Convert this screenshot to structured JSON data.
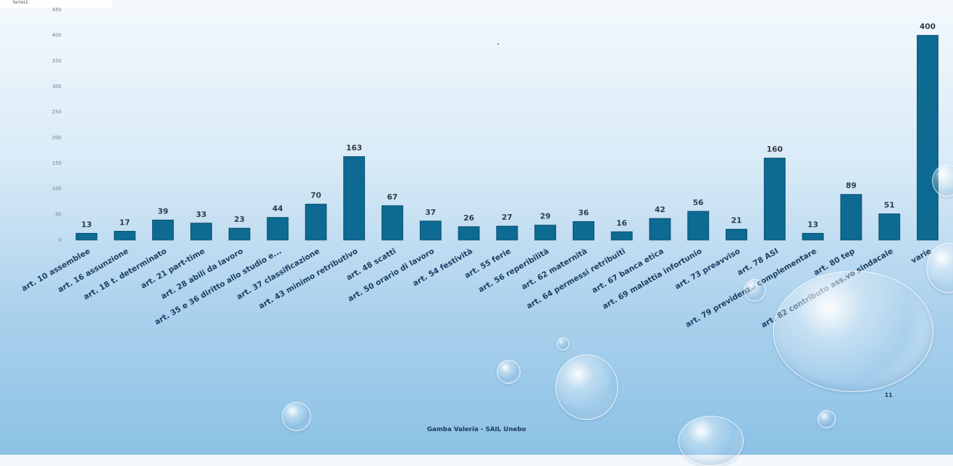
{
  "chart_data": {
    "type": "bar",
    "categories": [
      "art. 10 assemblee",
      "art. 16 assunzione",
      "art. 18 t. determinato",
      "art. 21 part-time",
      "art. 28 abili da lavoro",
      "art. 35 e 36 diritto allo studio e...",
      "art. 37 classificazione",
      "art. 43 minimo retributivo",
      "art. 48 scatti",
      "art. 50 orario di lavoro",
      "art. 54 festività",
      "art. 55 ferie",
      "art. 56 reperibilità",
      "art. 62 maternità",
      "art. 64 permessi retribuiti",
      "art. 67 banca etica",
      "art. 69 malattia infortunio",
      "art. 73 preavviso",
      "art. 78 ASI",
      "art. 79 previdenza complementare",
      "art. 80 tep",
      "art. 82 contributo ass.vo sindacale",
      "varie"
    ],
    "values": [
      13,
      17,
      39,
      33,
      23,
      44,
      70,
      163,
      67,
      37,
      26,
      27,
      29,
      36,
      16,
      42,
      56,
      21,
      160,
      13,
      89,
      51,
      400
    ],
    "ylim": [
      0,
      450
    ],
    "yticks": [
      0,
      50,
      100,
      150,
      200,
      250,
      300,
      350,
      400,
      450
    ],
    "title": "",
    "xlabel": "",
    "ylabel": "",
    "grid": false,
    "bar_color": "#0d6a93"
  },
  "footer": {
    "author": "Gamba Valeria - SAIL Unebo",
    "page_number": "11"
  },
  "legend": {
    "text": "Series1"
  }
}
